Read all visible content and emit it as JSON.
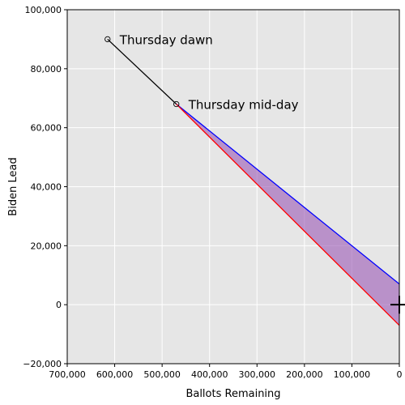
{
  "chart_data": {
    "type": "line",
    "xlabel": "Ballots Remaining",
    "ylabel": "Biden Lead",
    "xlim": [
      700000,
      0
    ],
    "ylim": [
      -20000,
      100000
    ],
    "x_reversed": true,
    "x_ticks": [
      {
        "value": 700000,
        "label": "700,000"
      },
      {
        "value": 600000,
        "label": "600,000"
      },
      {
        "value": 500000,
        "label": "500,000"
      },
      {
        "value": 400000,
        "label": "400,000"
      },
      {
        "value": 300000,
        "label": "300,000"
      },
      {
        "value": 200000,
        "label": "200,000"
      },
      {
        "value": 100000,
        "label": "100,000"
      },
      {
        "value": 0,
        "label": "0"
      }
    ],
    "y_ticks": [
      {
        "value": -20000,
        "label": "−20,000"
      },
      {
        "value": 0,
        "label": "0"
      },
      {
        "value": 20000,
        "label": "20,000"
      },
      {
        "value": 40000,
        "label": "40,000"
      },
      {
        "value": 60000,
        "label": "60,000"
      },
      {
        "value": 80000,
        "label": "80,000"
      },
      {
        "value": 100000,
        "label": "100,000"
      }
    ],
    "grid": true,
    "series": [
      {
        "color": "#000000",
        "x": [
          615000,
          470000
        ],
        "y": [
          90000,
          68000
        ],
        "markers": "open-circle"
      },
      {
        "color": "#0000ff",
        "x": [
          470000,
          0
        ],
        "y": [
          68000,
          7000
        ]
      },
      {
        "color": "#ff0000",
        "x": [
          470000,
          0
        ],
        "y": [
          68000,
          -7000
        ]
      }
    ],
    "fill_between": {
      "color": "#9b59b6",
      "opacity": 0.6,
      "x": [
        470000,
        0
      ],
      "upper": [
        68000,
        7000
      ],
      "lower": [
        68000,
        -7000
      ]
    },
    "annotations": [
      {
        "text": "Thursday dawn",
        "x": 615000,
        "y": 90000
      },
      {
        "text": "Thursday mid-day",
        "x": 470000,
        "y": 68000
      }
    ],
    "marker_plus": {
      "x": 0,
      "y": 0
    }
  }
}
